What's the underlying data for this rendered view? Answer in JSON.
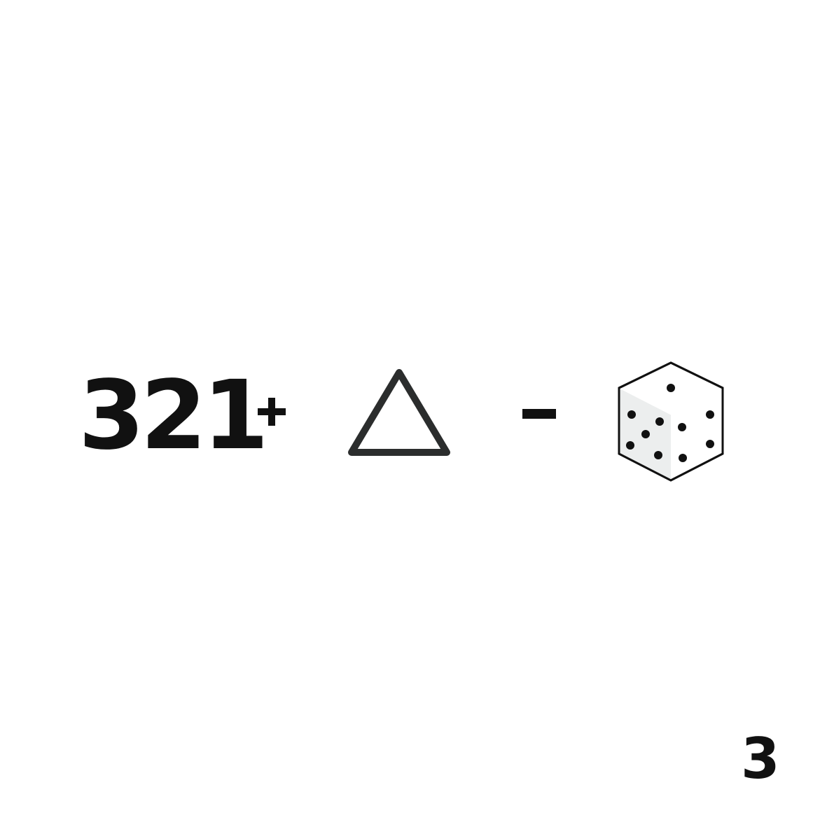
{
  "equation": {
    "number": "321",
    "operator_plus": "+",
    "shape_triangle": "triangle-icon",
    "operator_minus": "-",
    "shape_cube": "dice-cube-icon",
    "cube_visible_pips": 11
  },
  "page_number": "3",
  "colors": {
    "ink": "#111111",
    "triangle_stroke": "#2b2d2d",
    "cube_shade": "#eceeee"
  }
}
